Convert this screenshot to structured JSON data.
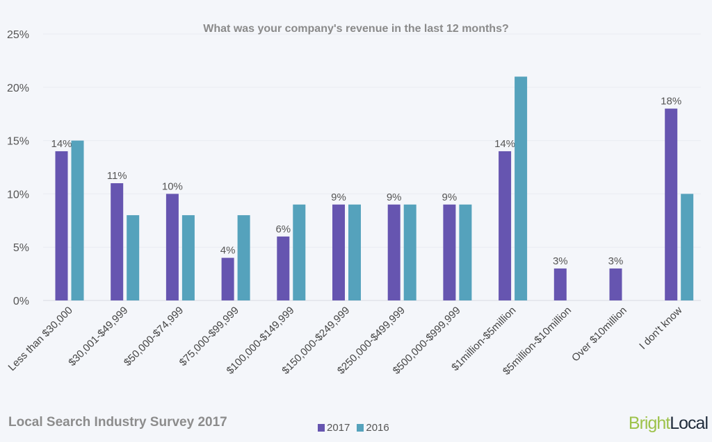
{
  "chart_data": {
    "type": "bar",
    "title": "What was your company's revenue in the last 12 months?",
    "categories": [
      "Less than $30,000",
      "$30,001-$49,999",
      "$50,000-$74,999",
      "$75,000-$99,999",
      "$100,000-$149,999",
      "$150,000-$249,999",
      "$250,000-$499,999",
      "$500,000-$999,999",
      "$1million-$5million",
      "$5million-$10million",
      "Over $10million",
      "I don't know"
    ],
    "series": [
      {
        "name": "2017",
        "color": "#6655b0",
        "values": [
          14,
          11,
          10,
          4,
          6,
          9,
          9,
          9,
          14,
          3,
          3,
          18
        ],
        "data_labels": true
      },
      {
        "name": "2016",
        "color": "#55a2bc",
        "values": [
          15,
          8,
          8,
          8,
          9,
          9,
          9,
          9,
          21,
          null,
          null,
          10
        ],
        "data_labels": false
      }
    ],
    "ylim": [
      0,
      25
    ],
    "yticks": [
      "0%",
      "5%",
      "10%",
      "15%",
      "20%",
      "25%"
    ],
    "ytick_values": [
      0,
      5,
      10,
      15,
      20,
      25
    ],
    "grid": true,
    "legend": "bottom-center",
    "xlabel": "",
    "ylabel": ""
  },
  "footer": {
    "survey": "Local Search Industry Survey 2017",
    "brand_part1": "Bright",
    "brand_part2": "Local"
  }
}
